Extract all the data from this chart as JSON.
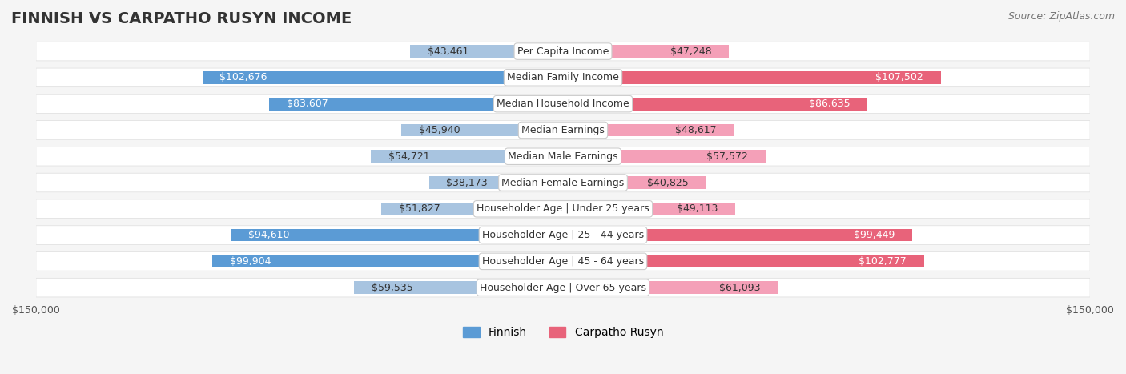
{
  "title": "FINNISH VS CARPATHO RUSYN INCOME",
  "source": "Source: ZipAtlas.com",
  "categories": [
    "Per Capita Income",
    "Median Family Income",
    "Median Household Income",
    "Median Earnings",
    "Median Male Earnings",
    "Median Female Earnings",
    "Householder Age | Under 25 years",
    "Householder Age | 25 - 44 years",
    "Householder Age | 45 - 64 years",
    "Householder Age | Over 65 years"
  ],
  "finnish_values": [
    43461,
    102676,
    83607,
    45940,
    54721,
    38173,
    51827,
    94610,
    99904,
    59535
  ],
  "rusyn_values": [
    47248,
    107502,
    86635,
    48617,
    57572,
    40825,
    49113,
    99449,
    102777,
    61093
  ],
  "finnish_labels": [
    "$43,461",
    "$102,676",
    "$83,607",
    "$45,940",
    "$54,721",
    "$38,173",
    "$51,827",
    "$94,610",
    "$99,904",
    "$59,535"
  ],
  "rusyn_labels": [
    "$47,248",
    "$107,502",
    "$86,635",
    "$48,617",
    "$57,572",
    "$40,825",
    "$49,113",
    "$99,449",
    "$102,777",
    "$61,093"
  ],
  "max_value": 150000,
  "finnish_color_light": "#a8c4e0",
  "finnish_color_dark": "#5b9bd5",
  "rusyn_color_light": "#f4a0b8",
  "rusyn_color_dark": "#e8637a",
  "label_color_dark_threshold": 70000,
  "bg_color": "#f5f5f5",
  "row_bg_color": "#ffffff",
  "title_fontsize": 14,
  "source_fontsize": 9,
  "label_fontsize": 9,
  "category_fontsize": 9,
  "legend_fontsize": 10,
  "axis_label_fontsize": 9
}
